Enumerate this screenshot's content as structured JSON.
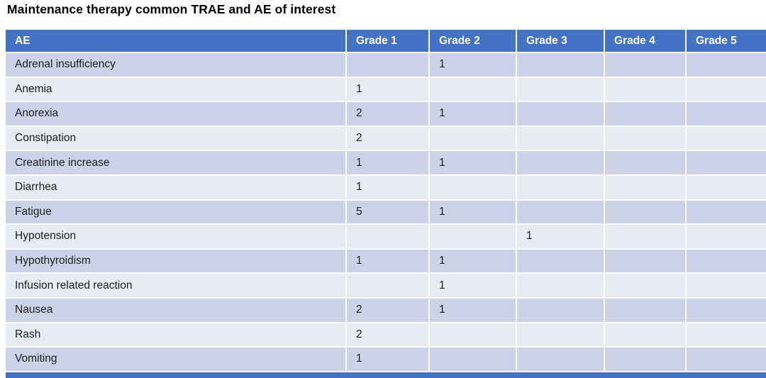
{
  "slide": {
    "title": "Maintenance therapy common TRAE and AE of interest"
  },
  "colors": {
    "header_bg": "#4472C4",
    "header_text": "#FFFFFF",
    "row_band_dark": "#CDD3E6",
    "row_band_light": "#E9EBF4",
    "body_text": "#1C1C20",
    "title_text": "#000000"
  },
  "table": {
    "columns": [
      "AE",
      "Grade 1",
      "Grade 2",
      "Grade 3",
      "Grade 4",
      "Grade 5"
    ],
    "rows": [
      {
        "ae": "Adrenal insufficiency",
        "grades": [
          "",
          "1",
          "",
          "",
          ""
        ]
      },
      {
        "ae": "Anemia",
        "grades": [
          "1",
          "",
          "",
          "",
          ""
        ]
      },
      {
        "ae": "Anorexia",
        "grades": [
          "2",
          "1",
          "",
          "",
          ""
        ]
      },
      {
        "ae": "Constipation",
        "grades": [
          "2",
          "",
          "",
          "",
          ""
        ]
      },
      {
        "ae": "Creatinine increase",
        "grades": [
          "1",
          "1",
          "",
          "",
          ""
        ]
      },
      {
        "ae": "Diarrhea",
        "grades": [
          "1",
          "",
          "",
          "",
          ""
        ]
      },
      {
        "ae": "Fatigue",
        "grades": [
          "5",
          "1",
          "",
          "",
          ""
        ]
      },
      {
        "ae": "Hypotension",
        "grades": [
          "",
          "",
          "1",
          "",
          ""
        ]
      },
      {
        "ae": "Hypothyroidism",
        "grades": [
          "1",
          "1",
          "",
          "",
          ""
        ]
      },
      {
        "ae": "Infusion related reaction",
        "grades": [
          "",
          "1",
          "",
          "",
          ""
        ]
      },
      {
        "ae": "Nausea",
        "grades": [
          "2",
          "1",
          "",
          "",
          ""
        ]
      },
      {
        "ae": "Rash",
        "grades": [
          "2",
          "",
          "",
          "",
          ""
        ]
      },
      {
        "ae": "Vomiting",
        "grades": [
          "1",
          "",
          "",
          "",
          ""
        ]
      }
    ]
  }
}
